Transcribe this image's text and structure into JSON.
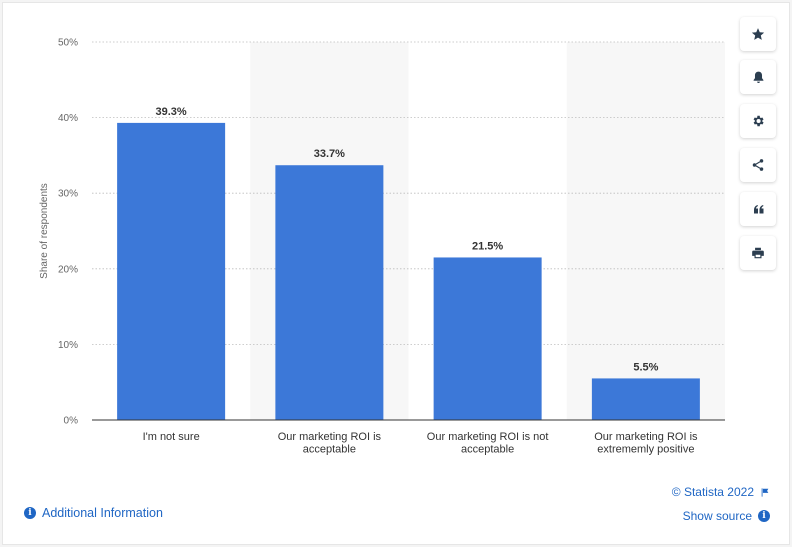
{
  "chart_data": {
    "type": "bar",
    "categories": [
      [
        "I'm not sure"
      ],
      [
        "Our marketing ROI is",
        "acceptable"
      ],
      [
        "Our marketing ROI is not",
        "acceptable"
      ],
      [
        "Our marketing ROI is",
        "extrememly positive"
      ]
    ],
    "values": [
      39.3,
      33.7,
      21.5,
      5.5
    ],
    "value_labels": [
      "39.3%",
      "33.7%",
      "21.5%",
      "5.5%"
    ],
    "ylabel": "Share of respondents",
    "ylim": [
      0,
      50
    ],
    "yticks": [
      0,
      10,
      20,
      30,
      40,
      50
    ],
    "ytick_labels": [
      "0%",
      "10%",
      "20%",
      "30%",
      "40%",
      "50%"
    ],
    "grid": true,
    "bar_color": "#3c78d8"
  },
  "sidebar": {
    "buttons": [
      {
        "icon": "star-icon"
      },
      {
        "icon": "bell-icon"
      },
      {
        "icon": "gear-icon"
      },
      {
        "icon": "share-icon"
      },
      {
        "icon": "quote-icon"
      },
      {
        "icon": "print-icon"
      }
    ]
  },
  "footer": {
    "copyright": "© Statista 2022",
    "additional_info": "Additional Information",
    "show_source": "Show source"
  }
}
